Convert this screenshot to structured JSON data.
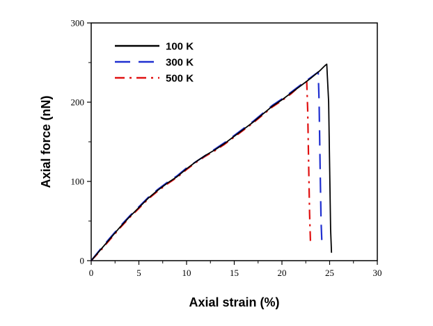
{
  "chart_data": {
    "type": "line",
    "title": "",
    "xlabel": "Axial strain (%)",
    "ylabel": "Axial force (nN)",
    "xlim": [
      0,
      30
    ],
    "ylim": [
      0,
      300
    ],
    "x_ticks": [
      0,
      5,
      10,
      15,
      20,
      25,
      30
    ],
    "y_ticks": [
      0,
      100,
      200,
      300
    ],
    "grid": false,
    "legend_position": "top-left",
    "series": [
      {
        "name": "100 K",
        "color": "#000000",
        "dash": "solid",
        "points": [
          [
            0,
            0
          ],
          [
            1,
            14
          ],
          [
            2,
            28
          ],
          [
            3,
            42
          ],
          [
            4,
            55
          ],
          [
            5,
            67
          ],
          [
            6,
            79
          ],
          [
            7,
            89
          ],
          [
            8,
            98
          ],
          [
            9,
            106
          ],
          [
            10,
            116
          ],
          [
            11,
            125
          ],
          [
            12,
            133
          ],
          [
            13,
            140
          ],
          [
            14,
            148
          ],
          [
            15,
            157
          ],
          [
            16,
            166
          ],
          [
            17,
            175
          ],
          [
            18,
            185
          ],
          [
            19,
            195
          ],
          [
            20,
            203
          ],
          [
            21,
            212
          ],
          [
            22,
            221
          ],
          [
            23,
            230
          ],
          [
            24,
            240
          ],
          [
            24.5,
            246
          ],
          [
            24.7,
            248
          ],
          [
            24.9,
            200
          ],
          [
            25.0,
            120
          ],
          [
            25.1,
            40
          ],
          [
            25.2,
            10
          ]
        ]
      },
      {
        "name": "300 K",
        "color": "#1f2fd0",
        "dash": "dash",
        "points": [
          [
            0,
            0
          ],
          [
            1,
            15
          ],
          [
            2,
            29
          ],
          [
            3,
            43
          ],
          [
            4,
            56
          ],
          [
            5,
            68
          ],
          [
            6,
            80
          ],
          [
            7,
            90
          ],
          [
            8,
            99
          ],
          [
            9,
            107
          ],
          [
            10,
            117
          ],
          [
            11,
            125
          ],
          [
            12,
            133
          ],
          [
            13,
            141
          ],
          [
            14,
            149
          ],
          [
            15,
            158
          ],
          [
            16,
            167
          ],
          [
            17,
            176
          ],
          [
            18,
            186
          ],
          [
            19,
            196
          ],
          [
            20,
            204
          ],
          [
            21,
            213
          ],
          [
            22,
            222
          ],
          [
            23,
            231
          ],
          [
            23.8,
            238
          ],
          [
            23.9,
            200
          ],
          [
            24.0,
            120
          ],
          [
            24.1,
            50
          ],
          [
            24.2,
            20
          ]
        ]
      },
      {
        "name": "500 K",
        "color": "#e01010",
        "dash": "dashdot",
        "points": [
          [
            0,
            0
          ],
          [
            1,
            13
          ],
          [
            2,
            27
          ],
          [
            3,
            41
          ],
          [
            4,
            54
          ],
          [
            5,
            66
          ],
          [
            6,
            78
          ],
          [
            7,
            88
          ],
          [
            8,
            97
          ],
          [
            9,
            105
          ],
          [
            10,
            115
          ],
          [
            11,
            124
          ],
          [
            12,
            132
          ],
          [
            13,
            139
          ],
          [
            14,
            147
          ],
          [
            15,
            156
          ],
          [
            16,
            165
          ],
          [
            17,
            174
          ],
          [
            18,
            184
          ],
          [
            19,
            194
          ],
          [
            20,
            202
          ],
          [
            21,
            211
          ],
          [
            22,
            222
          ],
          [
            22.6,
            226
          ],
          [
            22.7,
            190
          ],
          [
            22.8,
            120
          ],
          [
            22.9,
            60
          ],
          [
            23.0,
            20
          ]
        ]
      }
    ]
  }
}
